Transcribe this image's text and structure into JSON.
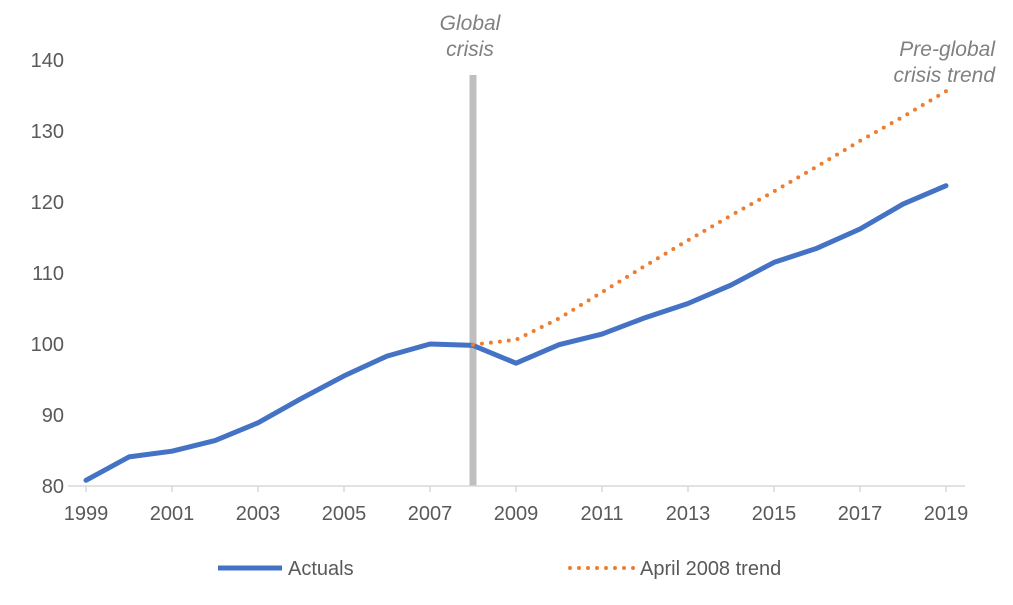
{
  "chart_data": {
    "type": "line",
    "title": "",
    "xlabel": "",
    "ylabel": "",
    "xlim": [
      1999,
      2019
    ],
    "ylim": [
      80,
      140
    ],
    "x_ticks": [
      "1999",
      "2001",
      "2003",
      "2005",
      "2007",
      "2009",
      "2011",
      "2013",
      "2015",
      "2017",
      "2019"
    ],
    "y_ticks": [
      "80",
      "90",
      "100",
      "110",
      "120",
      "130",
      "140"
    ],
    "grid": false,
    "legend_position": "bottom",
    "series": [
      {
        "name": "Actuals",
        "color": "#4472C4",
        "style": "solid",
        "x": [
          1999,
          2000,
          2001,
          2002,
          2003,
          2004,
          2005,
          2006,
          2007,
          2008,
          2009,
          2010,
          2011,
          2012,
          2013,
          2014,
          2015,
          2016,
          2017,
          2018,
          2019
        ],
        "y": [
          80.8,
          84.1,
          84.9,
          86.4,
          88.9,
          92.3,
          95.5,
          98.3,
          100.0,
          99.8,
          97.3,
          99.9,
          101.4,
          103.7,
          105.7,
          108.3,
          111.5,
          113.5,
          116.2,
          119.7,
          122.3
        ]
      },
      {
        "name": "April 2008 trend",
        "color": "#ED7D31",
        "style": "dotted",
        "x": [
          2008,
          2009,
          2010,
          2011,
          2012,
          2013,
          2014,
          2015,
          2016,
          2017,
          2018,
          2019
        ],
        "y": [
          99.9,
          100.6,
          103.6,
          107.3,
          111.0,
          114.6,
          118.1,
          121.5,
          125.0,
          128.6,
          132.0,
          135.6
        ]
      }
    ],
    "markers": [
      {
        "x": 2008,
        "color": "#BFBFBF",
        "label_lines": [
          "Global",
          "crisis"
        ]
      }
    ],
    "annotations": [
      {
        "label_lines": [
          "Pre-global",
          "crisis trend"
        ]
      }
    ]
  }
}
